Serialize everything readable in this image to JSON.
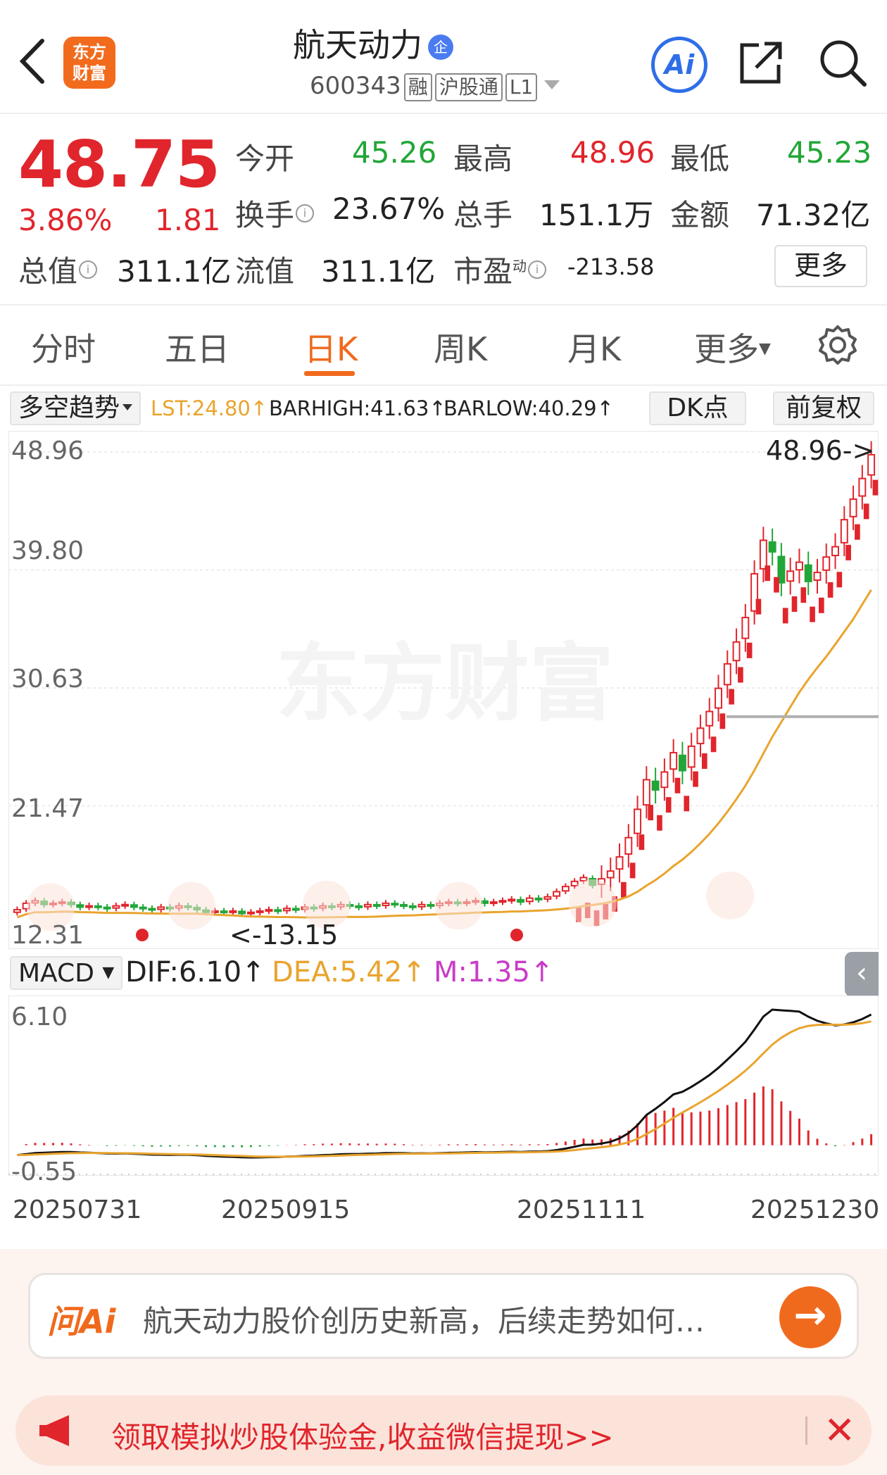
{
  "header": {
    "title": "航天动力",
    "badge": "企",
    "code": "600343",
    "tags": [
      "融",
      "沪股通",
      "L1"
    ],
    "logo_line1": "东方",
    "logo_line2": "财富",
    "ai_label": "Ai"
  },
  "quote": {
    "price": "48.75",
    "change_pct": "3.86%",
    "change": "1.81",
    "open_label": "今开",
    "open": "45.26",
    "high_label": "最高",
    "high": "48.96",
    "low_label": "最低",
    "low": "45.23",
    "turnover_label": "换手",
    "turnover": "23.67%",
    "volume_label": "总手",
    "volume": "151.1万",
    "amount_label": "金额",
    "amount": "71.32亿",
    "mktcap_label": "总值",
    "mktcap": "311.1亿",
    "float_label": "流值",
    "float": "311.1亿",
    "pe_label": "市盈",
    "pe_sup": "动",
    "pe": "-213.58",
    "more_label": "更多",
    "info_icon": "i"
  },
  "tabs": [
    "分时",
    "五日",
    "日K",
    "周K",
    "月K",
    "更多"
  ],
  "active_tab": "日K",
  "indicator": {
    "name": "多空趋势",
    "lst": "LST:24.80↑",
    "barhigh": "BARHIGH:41.63↑",
    "barlow": "BARLOW:40.29↑",
    "dk_label": "DK点",
    "adjust_label": "前复权"
  },
  "chart_data": {
    "type": "candlestick",
    "y_ticks": [
      "48.96",
      "39.80",
      "30.63",
      "21.47",
      "12.31"
    ],
    "max_label": "48.96->",
    "min_label": "<-13.15",
    "ylim": [
      12.31,
      48.96
    ],
    "x_ticks": [
      "20250731",
      "20250915",
      "20251111",
      "20251230"
    ],
    "closes": [
      13.4,
      13.9,
      14.1,
      13.8,
      13.9,
      14.0,
      13.8,
      13.6,
      13.7,
      13.6,
      13.5,
      13.7,
      13.8,
      13.6,
      13.5,
      13.4,
      13.6,
      13.5,
      13.7,
      13.6,
      13.4,
      13.2,
      13.3,
      13.2,
      13.3,
      13.1,
      13.2,
      13.3,
      13.4,
      13.3,
      13.5,
      13.4,
      13.6,
      13.5,
      13.7,
      13.6,
      13.8,
      13.7,
      13.6,
      13.8,
      13.7,
      13.9,
      13.8,
      13.7,
      13.6,
      13.8,
      13.7,
      13.9,
      14.0,
      13.9,
      14.0,
      14.1,
      13.9,
      14.0,
      14.1,
      14.2,
      14.0,
      14.3,
      14.2,
      14.4,
      14.8,
      15.2,
      15.6,
      15.9,
      15.3,
      15.8,
      16.4,
      17.5,
      19.0,
      21.2,
      23.5,
      22.7,
      24.1,
      25.6,
      24.2,
      26.1,
      27.5,
      28.8,
      30.6,
      32.5,
      34.2,
      36.1,
      39.5,
      42.1,
      41.2,
      38.8,
      39.7,
      40.4,
      38.9,
      39.6,
      40.8,
      41.6,
      43.7,
      45.3,
      46.9,
      48.75
    ],
    "macd": {
      "dif_label": "DIF:6.10↑",
      "dea_label": "DEA:5.42↑",
      "m_label": "M:1.35↑",
      "selector": "MACD",
      "y_top": "6.10",
      "y_bottom": "-0.55",
      "ylim": [
        -0.55,
        6.1
      ]
    }
  },
  "ai_ask": {
    "logo": "问Ai",
    "text": "航天动力股价创历史新高，后续走势如何…"
  },
  "banner": {
    "text": "领取模拟炒股体验金,收益微信提现>>"
  },
  "colors": {
    "up": "#e0252c",
    "down": "#22a638",
    "accent": "#f06a1e",
    "ma": "#e9a42e",
    "macd_m": "#c83cc8"
  }
}
